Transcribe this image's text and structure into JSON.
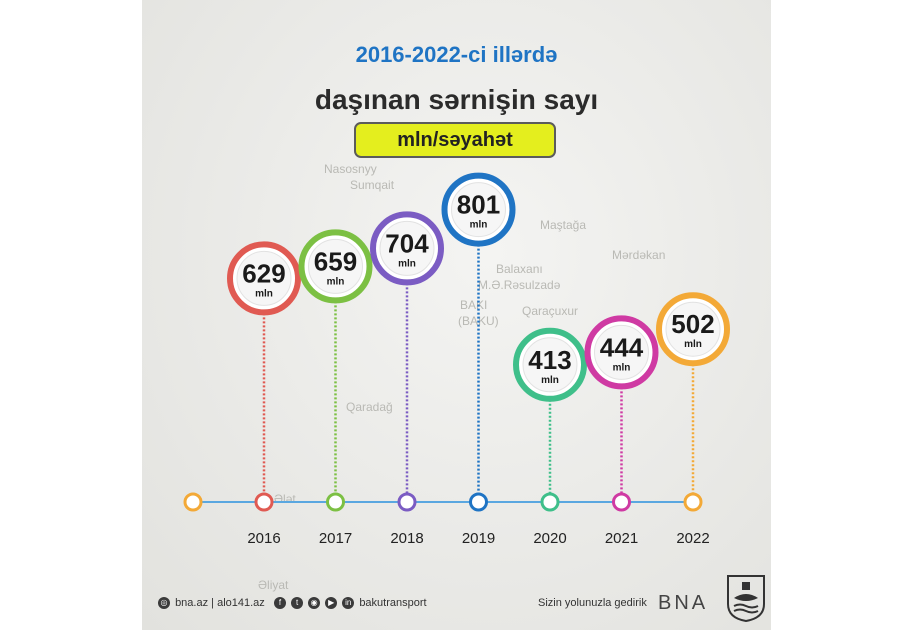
{
  "header": {
    "title_line1": "2016-2022-ci illərdə",
    "title_line2": "daşınan sərnişin sayı",
    "unit_badge": "mln/səyahət"
  },
  "chart_data": {
    "type": "line",
    "categories": [
      "2016",
      "2017",
      "2018",
      "2019",
      "2020",
      "2021",
      "2022"
    ],
    "values": [
      629,
      659,
      704,
      801,
      413,
      444,
      502
    ],
    "value_unit": "mln",
    "title": "2016-2022-ci illərdə daşınan sərnişin sayı",
    "ylabel": "mln/səyahət"
  },
  "colors": {
    "2016": "#e05a52",
    "2017": "#7cc043",
    "2018": "#7b5cc3",
    "2019": "#1f74c4",
    "2020": "#3fbf8a",
    "2021": "#cf3aa3",
    "2022": "#f3a937",
    "timeline": "#5aa7e0",
    "start_dot": "#f3a937"
  },
  "map_labels": [
    "Nasosnyy",
    "Sumqait",
    "Maştağa",
    "Mərdəkan",
    "Balaxanı",
    "M.Ə.Rəsulzadə",
    "Qaraçuxur",
    "BAKI",
    "(BAKU)",
    "Qaradağ",
    "Ələt",
    "Əliyat"
  ],
  "footer": {
    "site": "bna.az",
    "separator": "|",
    "phone": "alo141.az",
    "social_handle": "bakutransport",
    "slogan": "Sizin yolunuzla gedirik",
    "logo_text": "BNA"
  },
  "icons": [
    "globe-icon",
    "facebook-icon",
    "twitter-icon",
    "instagram-icon",
    "youtube-icon",
    "linkedin-icon",
    "emblem-icon"
  ]
}
